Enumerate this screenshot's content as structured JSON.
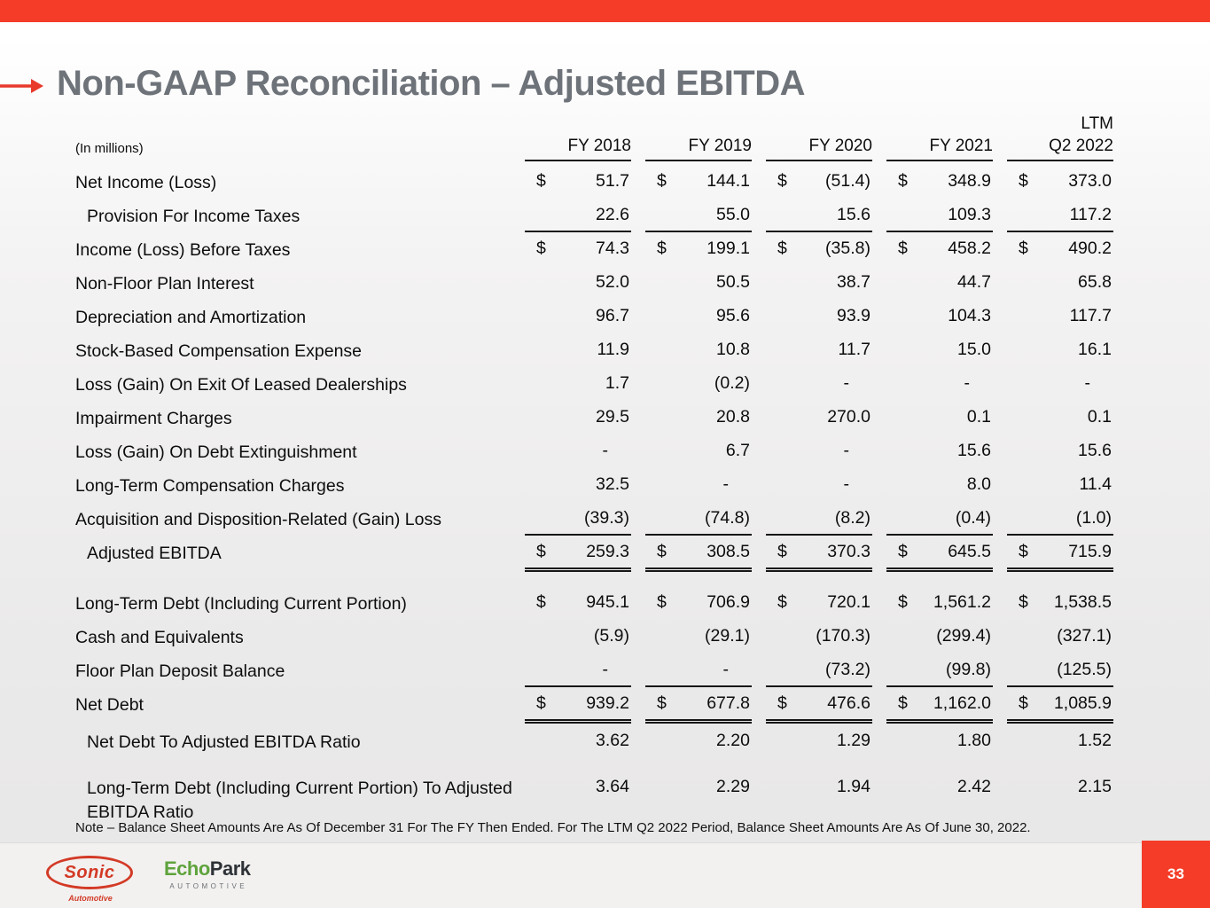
{
  "slide": {
    "title": "Non-GAAP Reconciliation – Adjusted EBITDA",
    "units_label": "(In millions)",
    "note": "Note – Balance Sheet Amounts Are As Of December 31 For The FY Then Ended. For The LTM Q2 2022 Period, Balance Sheet Amounts Are As Of June 30, 2022.",
    "page_number": "33"
  },
  "colors": {
    "accent_red": "#f43c28",
    "arrow_red": "#e8392b",
    "title_gray": "#6e737a",
    "sonic_red": "#d33a26",
    "echopark_green": "#5fa33c"
  },
  "logos": {
    "sonic": {
      "name": "Sonic",
      "sub": "Automotive"
    },
    "echopark": {
      "part1": "Echo",
      "part2": "Park",
      "sub": "AUTOMOTIVE"
    }
  },
  "table": {
    "currency": "$",
    "columns": [
      {
        "superlabel": "",
        "label": "FY 2018"
      },
      {
        "superlabel": "",
        "label": "FY 2019"
      },
      {
        "superlabel": "",
        "label": "FY 2020"
      },
      {
        "superlabel": "",
        "label": "FY 2021"
      },
      {
        "superlabel": "LTM",
        "label": "Q2 2022"
      }
    ],
    "rows": [
      {
        "label": "Net Income (Loss)",
        "dollar": true,
        "values": [
          "51.7",
          "144.1",
          "(51.4)",
          "348.9",
          "373.0"
        ],
        "underline": "none"
      },
      {
        "label": "Provision For Income Taxes",
        "indent": true,
        "values": [
          "22.6",
          "55.0",
          "15.6",
          "109.3",
          "117.2"
        ],
        "underline": "single"
      },
      {
        "label": "Income (Loss) Before Taxes",
        "dollar": true,
        "values": [
          "74.3",
          "199.1",
          "(35.8)",
          "458.2",
          "490.2"
        ],
        "underline": "none"
      },
      {
        "label": "Non-Floor Plan Interest",
        "values": [
          "52.0",
          "50.5",
          "38.7",
          "44.7",
          "65.8"
        ],
        "underline": "none"
      },
      {
        "label": "Depreciation and Amortization",
        "values": [
          "96.7",
          "95.6",
          "93.9",
          "104.3",
          "117.7"
        ],
        "underline": "none"
      },
      {
        "label": "Stock-Based Compensation Expense",
        "values": [
          "11.9",
          "10.8",
          "11.7",
          "15.0",
          "16.1"
        ],
        "underline": "none"
      },
      {
        "label": "Loss (Gain) On Exit Of Leased Dealerships",
        "values": [
          "1.7",
          "(0.2)",
          "-",
          "-",
          "-"
        ],
        "underline": "none"
      },
      {
        "label": "Impairment Charges",
        "values": [
          "29.5",
          "20.8",
          "270.0",
          "0.1",
          "0.1"
        ],
        "underline": "none"
      },
      {
        "label": "Loss (Gain) On Debt Extinguishment",
        "values": [
          "-",
          "6.7",
          "-",
          "15.6",
          "15.6"
        ],
        "underline": "none"
      },
      {
        "label": "Long-Term Compensation Charges",
        "values": [
          "32.5",
          "-",
          "-",
          "8.0",
          "11.4"
        ],
        "underline": "none"
      },
      {
        "label": "Acquisition and Disposition-Related (Gain) Loss",
        "values": [
          "(39.3)",
          "(74.8)",
          "(8.2)",
          "(0.4)",
          "(1.0)"
        ],
        "underline": "single"
      },
      {
        "label": "Adjusted EBITDA",
        "indent": true,
        "dollar": true,
        "values": [
          "259.3",
          "308.5",
          "370.3",
          "645.5",
          "715.9"
        ],
        "underline": "double"
      },
      {
        "label": "Long-Term Debt (Including Current Portion)",
        "dollar": true,
        "values": [
          "945.1",
          "706.9",
          "720.1",
          "1,561.2",
          "1,538.5"
        ],
        "underline": "none",
        "gap_before": 19
      },
      {
        "label": "Cash and Equivalents",
        "values": [
          "(5.9)",
          "(29.1)",
          "(170.3)",
          "(299.4)",
          "(327.1)"
        ],
        "underline": "none"
      },
      {
        "label": "Floor Plan Deposit Balance",
        "values": [
          "-",
          "-",
          "(73.2)",
          "(99.8)",
          "(125.5)"
        ],
        "underline": "single"
      },
      {
        "label": "Net Debt",
        "dollar": true,
        "values": [
          "939.2",
          "677.8",
          "476.6",
          "1,162.0",
          "1,085.9"
        ],
        "underline": "double"
      },
      {
        "label": "Net Debt To Adjusted EBITDA Ratio",
        "indent": true,
        "values": [
          "3.62",
          "2.20",
          "1.29",
          "1.80",
          "1.52"
        ],
        "underline": "none",
        "gap_before": 4
      },
      {
        "label": "Long-Term Debt (Including Current Portion) To Adjusted EBITDA Ratio",
        "indent": true,
        "wrap": true,
        "values": [
          "3.64",
          "2.29",
          "1.94",
          "2.42",
          "2.15"
        ],
        "underline": "none",
        "gap_before": 14
      }
    ]
  }
}
